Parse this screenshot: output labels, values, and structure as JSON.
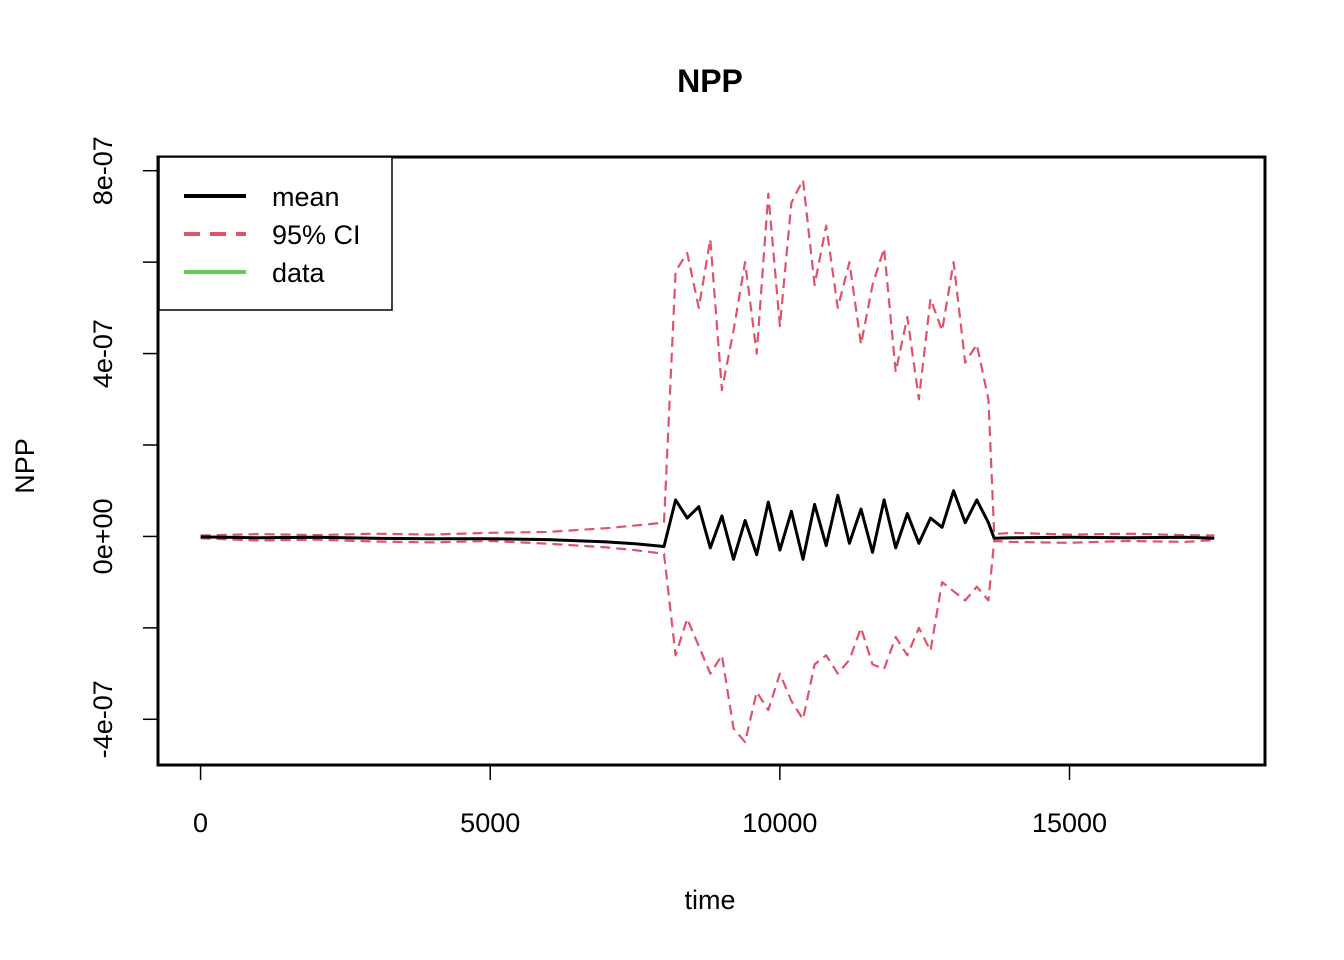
{
  "chart_data": {
    "type": "line",
    "title": "NPP",
    "xlabel": "time",
    "ylabel": "NPP",
    "xlim": [
      -735,
      18375
    ],
    "ylim": [
      -5e-07,
      8.3e-07
    ],
    "x_ticks": [
      0,
      5000,
      10000,
      15000
    ],
    "x_tick_labels": [
      "0",
      "5000",
      "10000",
      "15000"
    ],
    "y_ticks": [
      -4e-07,
      -2e-07,
      0,
      2e-07,
      4e-07,
      6e-07,
      8e-07
    ],
    "y_tick_labels": [
      "-4e-07",
      "",
      "0e+00",
      "",
      "4e-07",
      "",
      "8e-07"
    ],
    "grid": false,
    "legend_position": "top-left",
    "legend": [
      "mean",
      "95% CI",
      "data"
    ],
    "colors": {
      "mean": "#000000",
      "ci": "#DF536B",
      "data": "#61D04F"
    },
    "series": [
      {
        "name": "mean",
        "style": "solid",
        "x": [
          0,
          1000,
          2000,
          3000,
          4000,
          5000,
          6000,
          7000,
          7500,
          8000,
          8200,
          8400,
          8600,
          8800,
          9000,
          9200,
          9400,
          9600,
          9800,
          10000,
          10200,
          10400,
          10600,
          10800,
          11000,
          11200,
          11400,
          11600,
          11800,
          12000,
          12200,
          12400,
          12600,
          12800,
          13000,
          13200,
          13400,
          13600,
          13700,
          14000,
          15000,
          16000,
          17000,
          17500
        ],
        "y": [
          -1e-09,
          -3e-09,
          -2e-09,
          -4e-09,
          -5e-09,
          -5e-09,
          -7e-09,
          -1.2e-08,
          -1.6e-08,
          -2.2e-08,
          8e-08,
          4e-08,
          6.5e-08,
          -2.5e-08,
          4.5e-08,
          -5e-08,
          3.5e-08,
          -4e-08,
          7.5e-08,
          -3e-08,
          5.5e-08,
          -5e-08,
          7e-08,
          -2e-08,
          9e-08,
          -1.5e-08,
          6e-08,
          -3.5e-08,
          8e-08,
          -2.5e-08,
          5e-08,
          -1.5e-08,
          4e-08,
          2e-08,
          1e-07,
          3e-08,
          8e-08,
          3e-08,
          -4e-09,
          -3e-09,
          -2e-09,
          -3e-09,
          -2e-09,
          -4e-09
        ]
      },
      {
        "name": "95% CI",
        "style": "dashed",
        "x": [
          0,
          1000,
          2000,
          3000,
          4000,
          5000,
          6000,
          7000,
          7500,
          8000,
          8200,
          8400,
          8600,
          8800,
          9000,
          9200,
          9400,
          9600,
          9800,
          10000,
          10200,
          10400,
          10600,
          10800,
          11000,
          11200,
          11400,
          11600,
          11800,
          12000,
          12200,
          12400,
          12600,
          12800,
          13000,
          13200,
          13400,
          13600,
          13700,
          14000,
          15000,
          16000,
          17000,
          17500
        ],
        "y": [
          2e-09,
          5e-09,
          3e-09,
          6e-09,
          4e-09,
          8e-09,
          1e-08,
          1.8e-08,
          2.4e-08,
          3e-08,
          5.8e-07,
          6.2e-07,
          5e-07,
          6.5e-07,
          3.2e-07,
          4.5e-07,
          6e-07,
          4e-07,
          7.5e-07,
          4.6e-07,
          7.3e-07,
          7.8e-07,
          5.5e-07,
          6.8e-07,
          5e-07,
          6e-07,
          4.2e-07,
          5.5e-07,
          6.3e-07,
          3.6e-07,
          4.8e-07,
          3e-07,
          5.2e-07,
          4.5e-07,
          6e-07,
          3.8e-07,
          4.2e-07,
          3e-07,
          5e-09,
          8e-09,
          4e-09,
          6e-09,
          3e-09,
          2e-09
        ]
      },
      {
        "name": "95% CI",
        "style": "dashed",
        "x": [
          0,
          1000,
          2000,
          3000,
          4000,
          5000,
          6000,
          7000,
          7500,
          8000,
          8200,
          8400,
          8600,
          8800,
          9000,
          9200,
          9400,
          9600,
          9800,
          10000,
          10200,
          10400,
          10600,
          10800,
          11000,
          11200,
          11400,
          11600,
          11800,
          12000,
          12200,
          12400,
          12600,
          12800,
          13000,
          13200,
          13400,
          13600,
          13700,
          14000,
          15000,
          16000,
          17000,
          17500
        ],
        "y": [
          -4e-09,
          -9e-09,
          -7e-09,
          -1.1e-08,
          -1.3e-08,
          -1e-08,
          -1.6e-08,
          -2.4e-08,
          -3e-08,
          -3.8e-08,
          -2.6e-07,
          -1.8e-07,
          -2.4e-07,
          -3e-07,
          -2.6e-07,
          -4.2e-07,
          -4.5e-07,
          -3.4e-07,
          -3.8e-07,
          -3e-07,
          -3.6e-07,
          -4e-07,
          -2.8e-07,
          -2.6e-07,
          -3e-07,
          -2.7e-07,
          -2e-07,
          -2.8e-07,
          -2.9e-07,
          -2.2e-07,
          -2.6e-07,
          -2e-07,
          -2.5e-07,
          -1e-07,
          -1.2e-07,
          -1.4e-07,
          -1.1e-07,
          -1.4e-07,
          -1e-08,
          -1.2e-08,
          -1.4e-08,
          -1e-08,
          -1.2e-08,
          -8e-09
        ]
      }
    ]
  }
}
